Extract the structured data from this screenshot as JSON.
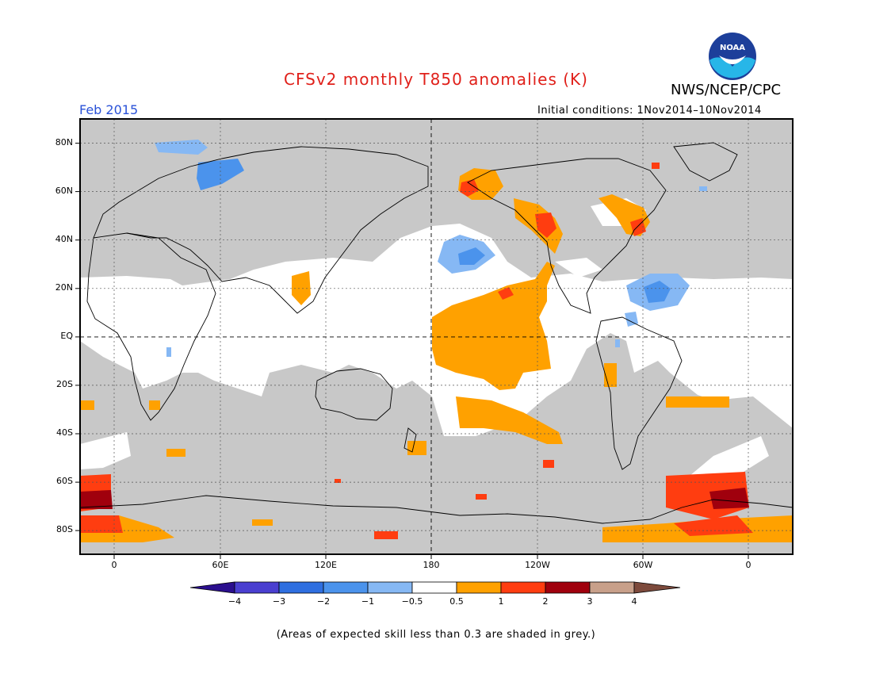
{
  "header": {
    "title": "CFSv2 monthly T850 anomalies (K)",
    "agency": "NWS/NCEP/CPC",
    "valid_month": "Feb 2015",
    "initial_conditions": "Initial conditions: 1Nov2014–10Nov2014",
    "logo_text": "NOAA"
  },
  "map": {
    "lat_labels": [
      "80N",
      "60N",
      "40N",
      "20N",
      "EQ",
      "20S",
      "40S",
      "60S",
      "80S"
    ],
    "lon_labels": [
      "0",
      "60E",
      "120E",
      "180",
      "120W",
      "60W",
      "0"
    ],
    "region_labels": []
  },
  "legend": {
    "tick_labels": [
      "−4",
      "−3",
      "−2",
      "−1",
      "−0.5",
      "0.5",
      "1",
      "2",
      "3",
      "4"
    ],
    "colors": [
      "#2b0f8e",
      "#4a3fd0",
      "#2f6fe0",
      "#4b93ec",
      "#86b8f4",
      "#ffffff",
      "#ffa100",
      "#ff3d10",
      "#a0000d",
      "#c8a08a",
      "#7d4a3c"
    ]
  },
  "footnote": "(Areas of expected skill less than 0.3 are shaded in grey.)",
  "palette": {
    "title_red": "#e0201a",
    "month_blue": "#2a52d8",
    "skill_grey": "#c8c8c8"
  }
}
